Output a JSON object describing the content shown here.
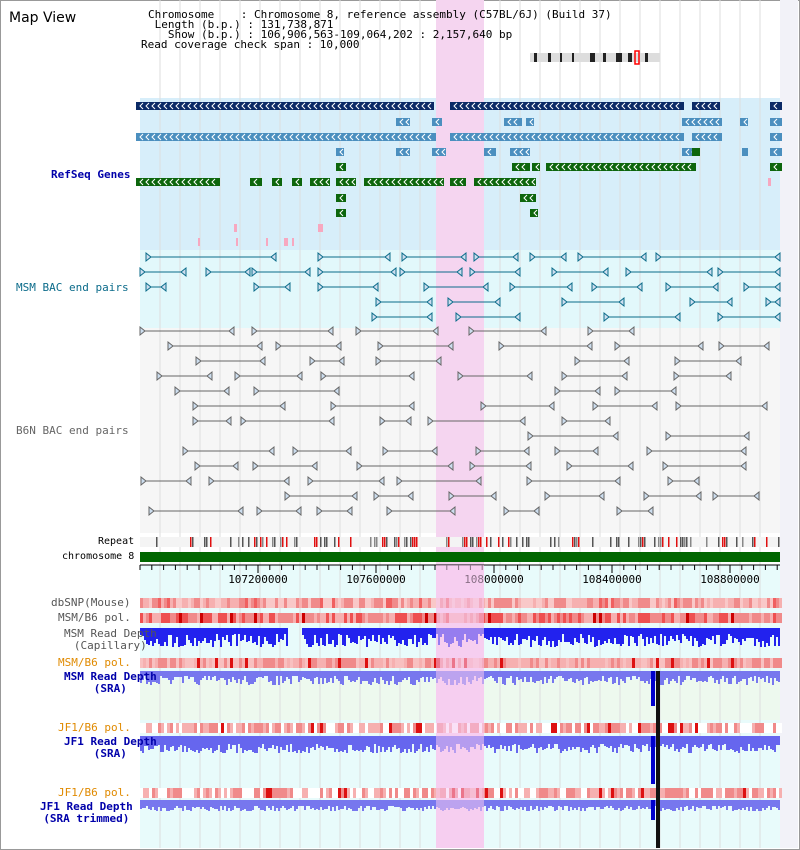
{
  "app": {
    "title": "Map View"
  },
  "header": {
    "lines": [
      "Chromosome    : Chromosome 8, reference assembly (C57BL/6J) (Build 37)",
      " Length (b.p.) : 131,738,871",
      "   Show (b.p.) : 106,906,563-109,064,202 : 2,157,640 bp",
      "Read coverage check span : 10,000"
    ]
  },
  "tracks": {
    "refseq": "RefSeq Genes",
    "msm_bac": "MSM BAC end pairs",
    "b6n_bac": "B6N BAC end pairs",
    "repeat": "Repeat",
    "chromosome": "chromosome 8",
    "dbsnp": "dbSNP(Mouse)",
    "msm_b6_pol_1": "MSM/B6 pol.",
    "msm_read_depth_cap_1": "MSM Read Depth",
    "msm_read_depth_cap_2": "(Capillary)",
    "msm_b6_pol_2": "MSM/B6 pol.",
    "msm_read_depth_sra_1": "MSM Read Depth",
    "msm_read_depth_sra_2": "(SRA)",
    "jf1_b6_pol_1": "JF1/B6 pol.",
    "jf1_read_depth_sra_1": "JF1 Read Depth",
    "jf1_read_depth_sra_2": "(SRA)",
    "jf1_b6_pol_2": "JF1/B6 pol.",
    "jf1_read_depth_trim_1": "JF1 Read Depth",
    "jf1_read_depth_trim_2": "(SRA trimmed)"
  },
  "axis": {
    "ticks": [
      "107200000",
      "107600000",
      "108000000",
      "108400000",
      "108800000"
    ]
  },
  "colors": {
    "navy": "#0b2a66",
    "steel": "#4b8fbf",
    "green": "#0d660d",
    "teal": "#0b6b8a",
    "highlight": "#f5d5f0",
    "refseq_bg": "#d7eefa",
    "msm_bg": "#e2f8fb"
  }
}
